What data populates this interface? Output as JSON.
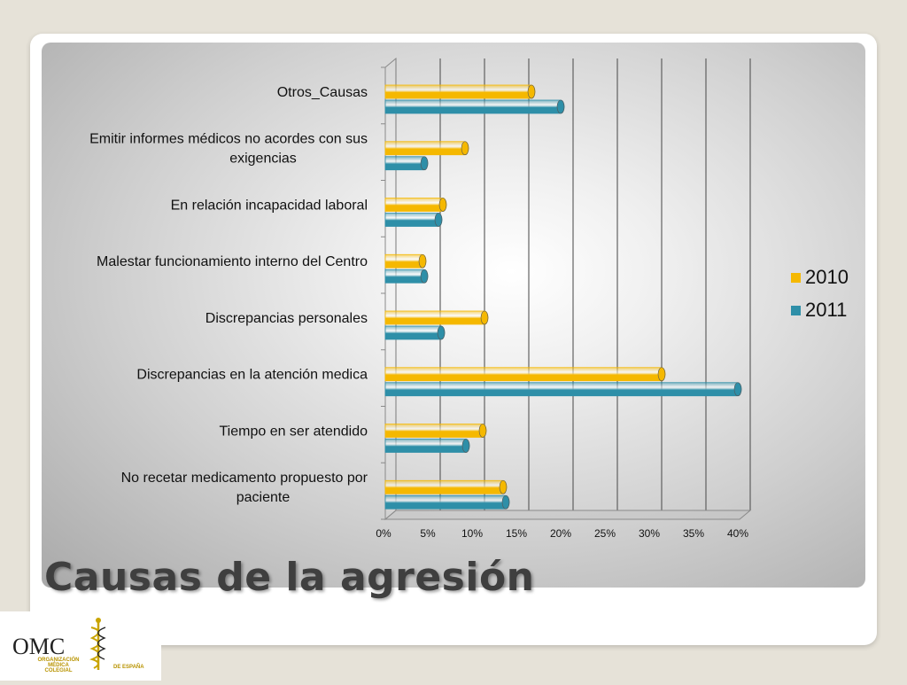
{
  "slide": {
    "title": "Causas de la agresión"
  },
  "logo": {
    "abbr": "OMC",
    "line1": "ORGANIZACIÓN",
    "line2": "MÉDICA",
    "line3": "COLEGIAL",
    "line4": "DE ESPAÑA"
  },
  "colors": {
    "series_2010": "#f5b800",
    "series_2011": "#2e8fa8",
    "title": "#3f3f3f"
  },
  "chart_data": {
    "type": "bar",
    "orientation": "horizontal",
    "style": "3d-cylinder",
    "categories": [
      "Otros_Causas",
      "Emitir informes médicos no acordes con sus exigencias",
      "En relación incapacidad laboral",
      "Malestar funcionamiento interno del Centro",
      "Discrepancias personales",
      "Discrepancias en la atención medica",
      "Tiempo en ser atendido",
      "No recetar medicamento propuesto por paciente"
    ],
    "category_label_lines": [
      [
        "Otros_Causas"
      ],
      [
        "Emitir informes médicos no acordes con sus",
        "exigencias"
      ],
      [
        "En relación incapacidad laboral"
      ],
      [
        "Malestar funcionamiento interno del Centro"
      ],
      [
        "Discrepancias personales"
      ],
      [
        "Discrepancias en la atención medica"
      ],
      [
        "Tiempo en ser atendido"
      ],
      [
        "No recetar medicamento propuesto por",
        "paciente"
      ]
    ],
    "series": [
      {
        "name": "2010",
        "values": [
          16.5,
          9,
          6.5,
          4.2,
          11.2,
          31.2,
          11,
          13.3
        ],
        "color": "#f5b800"
      },
      {
        "name": "2011",
        "values": [
          19.8,
          4.4,
          6,
          4.4,
          6.3,
          39.8,
          9.1,
          13.6
        ],
        "color": "#2e8fa8"
      }
    ],
    "x_ticks": [
      "0%",
      "5%",
      "10%",
      "15%",
      "20%",
      "25%",
      "30%",
      "35%",
      "40%"
    ],
    "xlim": [
      0,
      40
    ],
    "unit": "%",
    "gridlines": "vertical",
    "legend_position": "right"
  }
}
